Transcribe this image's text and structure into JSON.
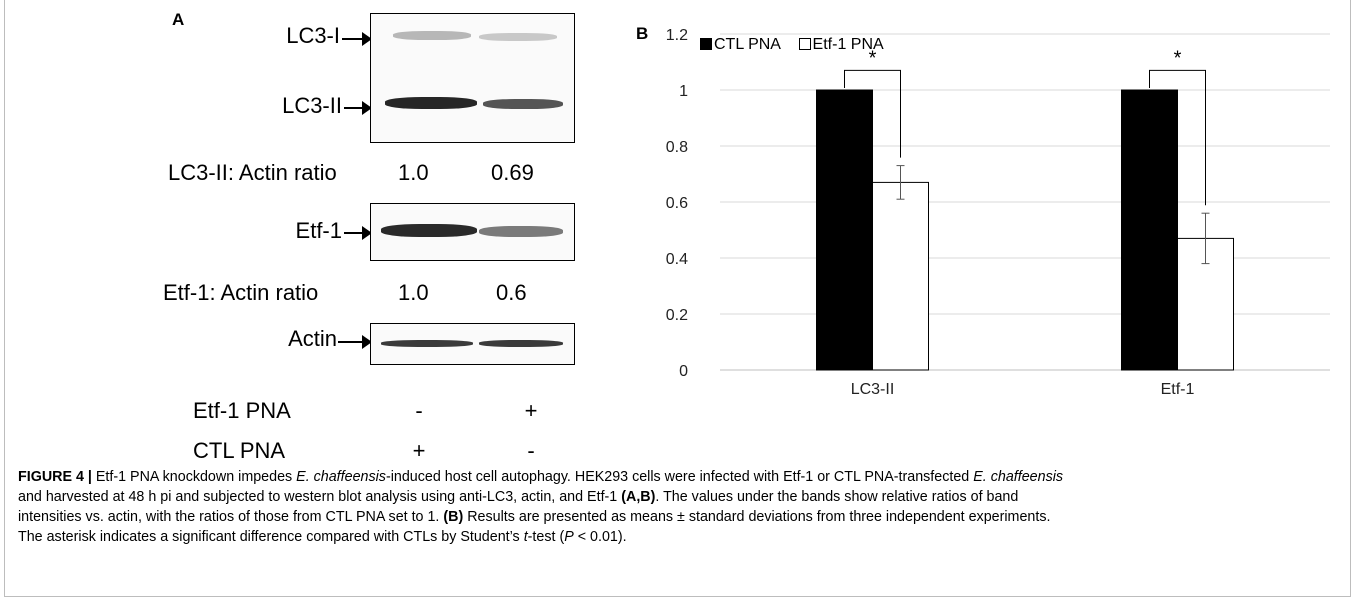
{
  "panel_a": {
    "letter": "A",
    "blot_labels": {
      "lc3_1": "LC3-I",
      "lc3_2": "LC3-II",
      "etf1": "Etf-1",
      "actin": "Actin"
    },
    "ratios": {
      "lc3_label": "LC3-II: Actin ratio",
      "lc3_values": [
        "1.0",
        "0.69"
      ],
      "etf1_label": "Etf-1: Actin ratio",
      "etf1_values": [
        "1.0",
        "0.6"
      ]
    },
    "conditions": {
      "etf1_pna_label": "Etf-1 PNA",
      "etf1_pna_signs": [
        "-",
        "+"
      ],
      "ctl_pna_label": "CTL PNA",
      "ctl_pna_signs": [
        "+",
        "-"
      ]
    }
  },
  "panel_b": {
    "letter": "B",
    "legend": {
      "ctl": "CTL PNA",
      "etf1": "Etf-1 PNA"
    },
    "significance_marker": "*"
  },
  "chart_data": {
    "type": "bar",
    "categories": [
      "LC3-II",
      "Etf-1"
    ],
    "series": [
      {
        "name": "CTL PNA",
        "values": [
          1.0,
          1.0
        ],
        "color": "#000000"
      },
      {
        "name": "Etf-1 PNA",
        "values": [
          0.67,
          0.47
        ],
        "error": [
          0.06,
          0.09
        ],
        "color": "#ffffff"
      }
    ],
    "ylim": [
      0,
      1.2
    ],
    "yticks": [
      "0",
      "0.2",
      "0.4",
      "0.6",
      "0.8",
      "1",
      "1.2"
    ],
    "grid": true,
    "legend_position": "top-left",
    "annotations": [
      "*",
      "*"
    ]
  },
  "caption": {
    "figure_label": "FIGURE 4 |",
    "line1_a": " Etf-1 PNA knockdown impedes ",
    "line1_i1": "E. chaffeensis",
    "line1_b": "-induced host cell autophagy. HEK293 cells were infected with Etf-1 or CTL PNA-transfected ",
    "line1_i2": "E. chaffeensis",
    "line2_a": "and harvested at 48 h pi and subjected to western blot analysis using anti-LC3, actin, and Etf-1 ",
    "line2_b": "(A,B)",
    "line2_c": ". The values under the bands show relative ratios of band",
    "line3_a": "intensities vs. actin, with the ratios of those from CTL PNA set to 1. ",
    "line3_b": "(B)",
    "line3_c": " Results are presented as means ± standard deviations from three independent experiments.",
    "line4_a": "The asterisk indicates a significant difference compared with CTLs by Student’s ",
    "line4_i": "t",
    "line4_b": "-test (",
    "line4_i2": "P",
    "line4_c": " < 0.01)."
  }
}
